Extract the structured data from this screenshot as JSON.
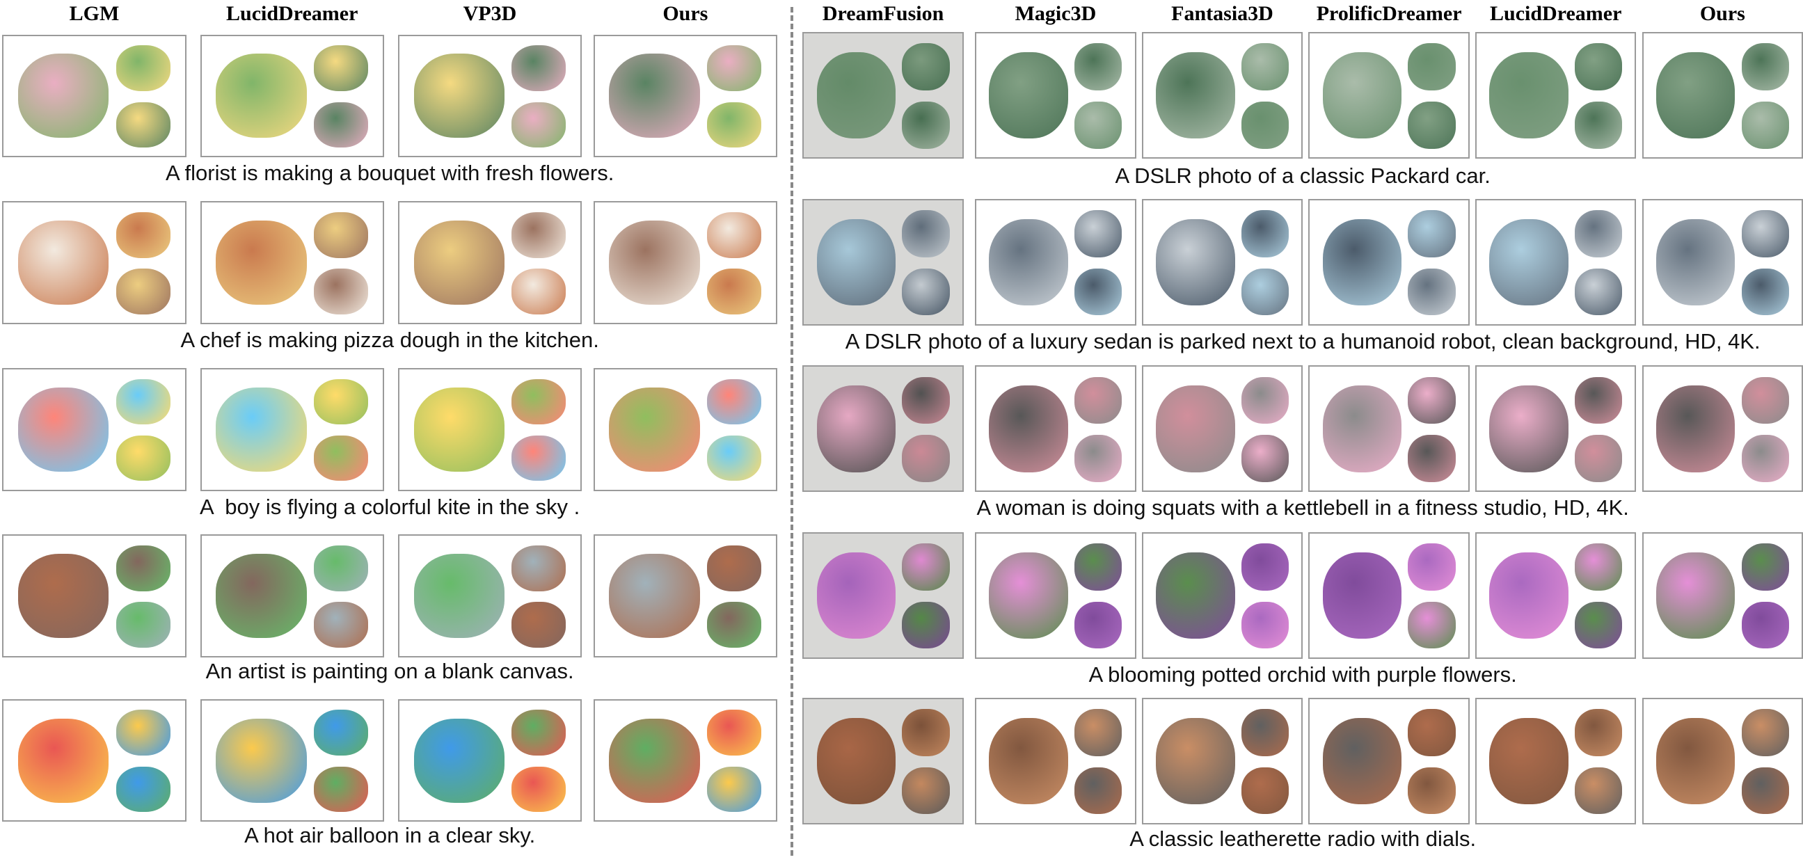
{
  "left": {
    "columns": [
      "LGM",
      "LucidDreamer",
      "VP3D",
      "Ours"
    ],
    "captions": [
      "A florist is making a bouquet with fresh flowers.",
      "A chef is making pizza dough in the kitchen.",
      "A  boy is flying a colorful kite in the sky .",
      "An artist is painting on a blank canvas.",
      "A hot air balloon in a clear sky."
    ]
  },
  "right": {
    "columns": [
      "DreamFusion",
      "Magic3D",
      "Fantasia3D",
      "ProlificDreamer",
      "LucidDreamer",
      "Ours"
    ],
    "captions": [
      "A DSLR photo of a classic Packard car.",
      "A DSLR photo of a luxury sedan is parked next to a humanoid robot, clean background, HD, 4K.",
      "A woman is doing squats with a kettlebell in a fitness studio, HD, 4K.",
      "A blooming potted orchid with purple flowers.",
      "A classic leatherette radio with dials."
    ]
  }
}
